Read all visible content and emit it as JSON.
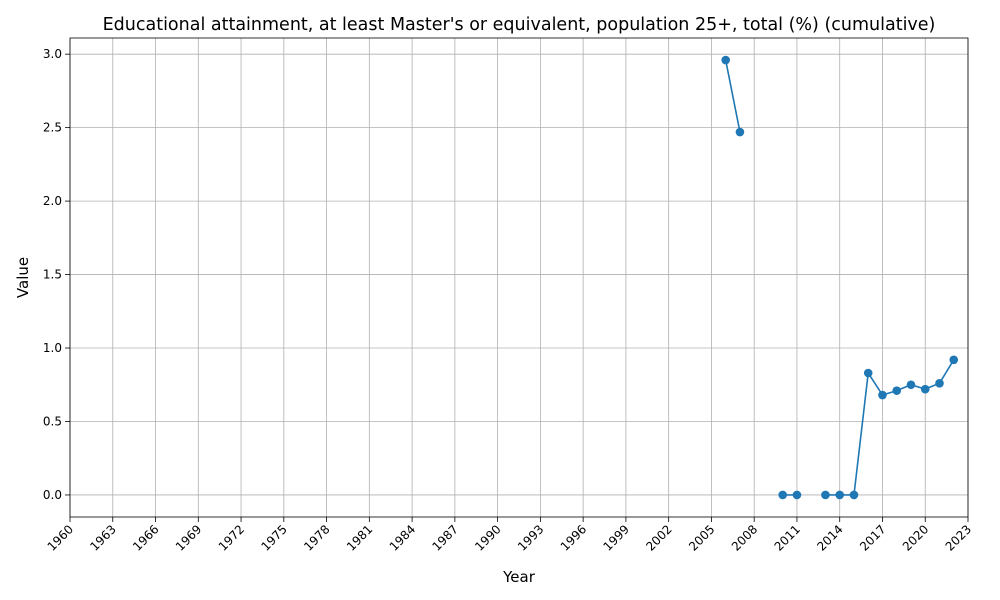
{
  "chart_data": {
    "type": "line",
    "title": "Educational attainment, at least Master's or equivalent, population 25+, total (%) (cumulative)",
    "xlabel": "Year",
    "ylabel": "Value",
    "xlim": [
      1960,
      2023
    ],
    "ylim": [
      -0.15,
      3.11
    ],
    "x_ticks": [
      1960,
      1963,
      1966,
      1969,
      1972,
      1975,
      1978,
      1981,
      1984,
      1987,
      1990,
      1993,
      1996,
      1999,
      2002,
      2005,
      2008,
      2011,
      2014,
      2017,
      2020,
      2023
    ],
    "y_ticks": [
      0.0,
      0.5,
      1.0,
      1.5,
      2.0,
      2.5,
      3.0
    ],
    "y_tick_labels": [
      "0.0",
      "0.5",
      "1.0",
      "1.5",
      "2.0",
      "2.5",
      "3.0"
    ],
    "grid": true,
    "series": [
      {
        "color": "#1f77b4",
        "marker": "circle",
        "points": [
          {
            "x": 2006,
            "y": 2.96
          },
          {
            "x": 2007,
            "y": 2.47
          },
          {
            "x": 2010,
            "y": 0.0
          },
          {
            "x": 2011,
            "y": 0.0
          },
          {
            "x": 2013,
            "y": 0.0
          },
          {
            "x": 2014,
            "y": 0.0
          },
          {
            "x": 2015,
            "y": 0.0
          },
          {
            "x": 2016,
            "y": 0.83
          },
          {
            "x": 2017,
            "y": 0.68
          },
          {
            "x": 2018,
            "y": 0.71
          },
          {
            "x": 2019,
            "y": 0.75
          },
          {
            "x": 2020,
            "y": 0.72
          },
          {
            "x": 2021,
            "y": 0.76
          },
          {
            "x": 2022,
            "y": 0.92
          }
        ]
      }
    ]
  }
}
